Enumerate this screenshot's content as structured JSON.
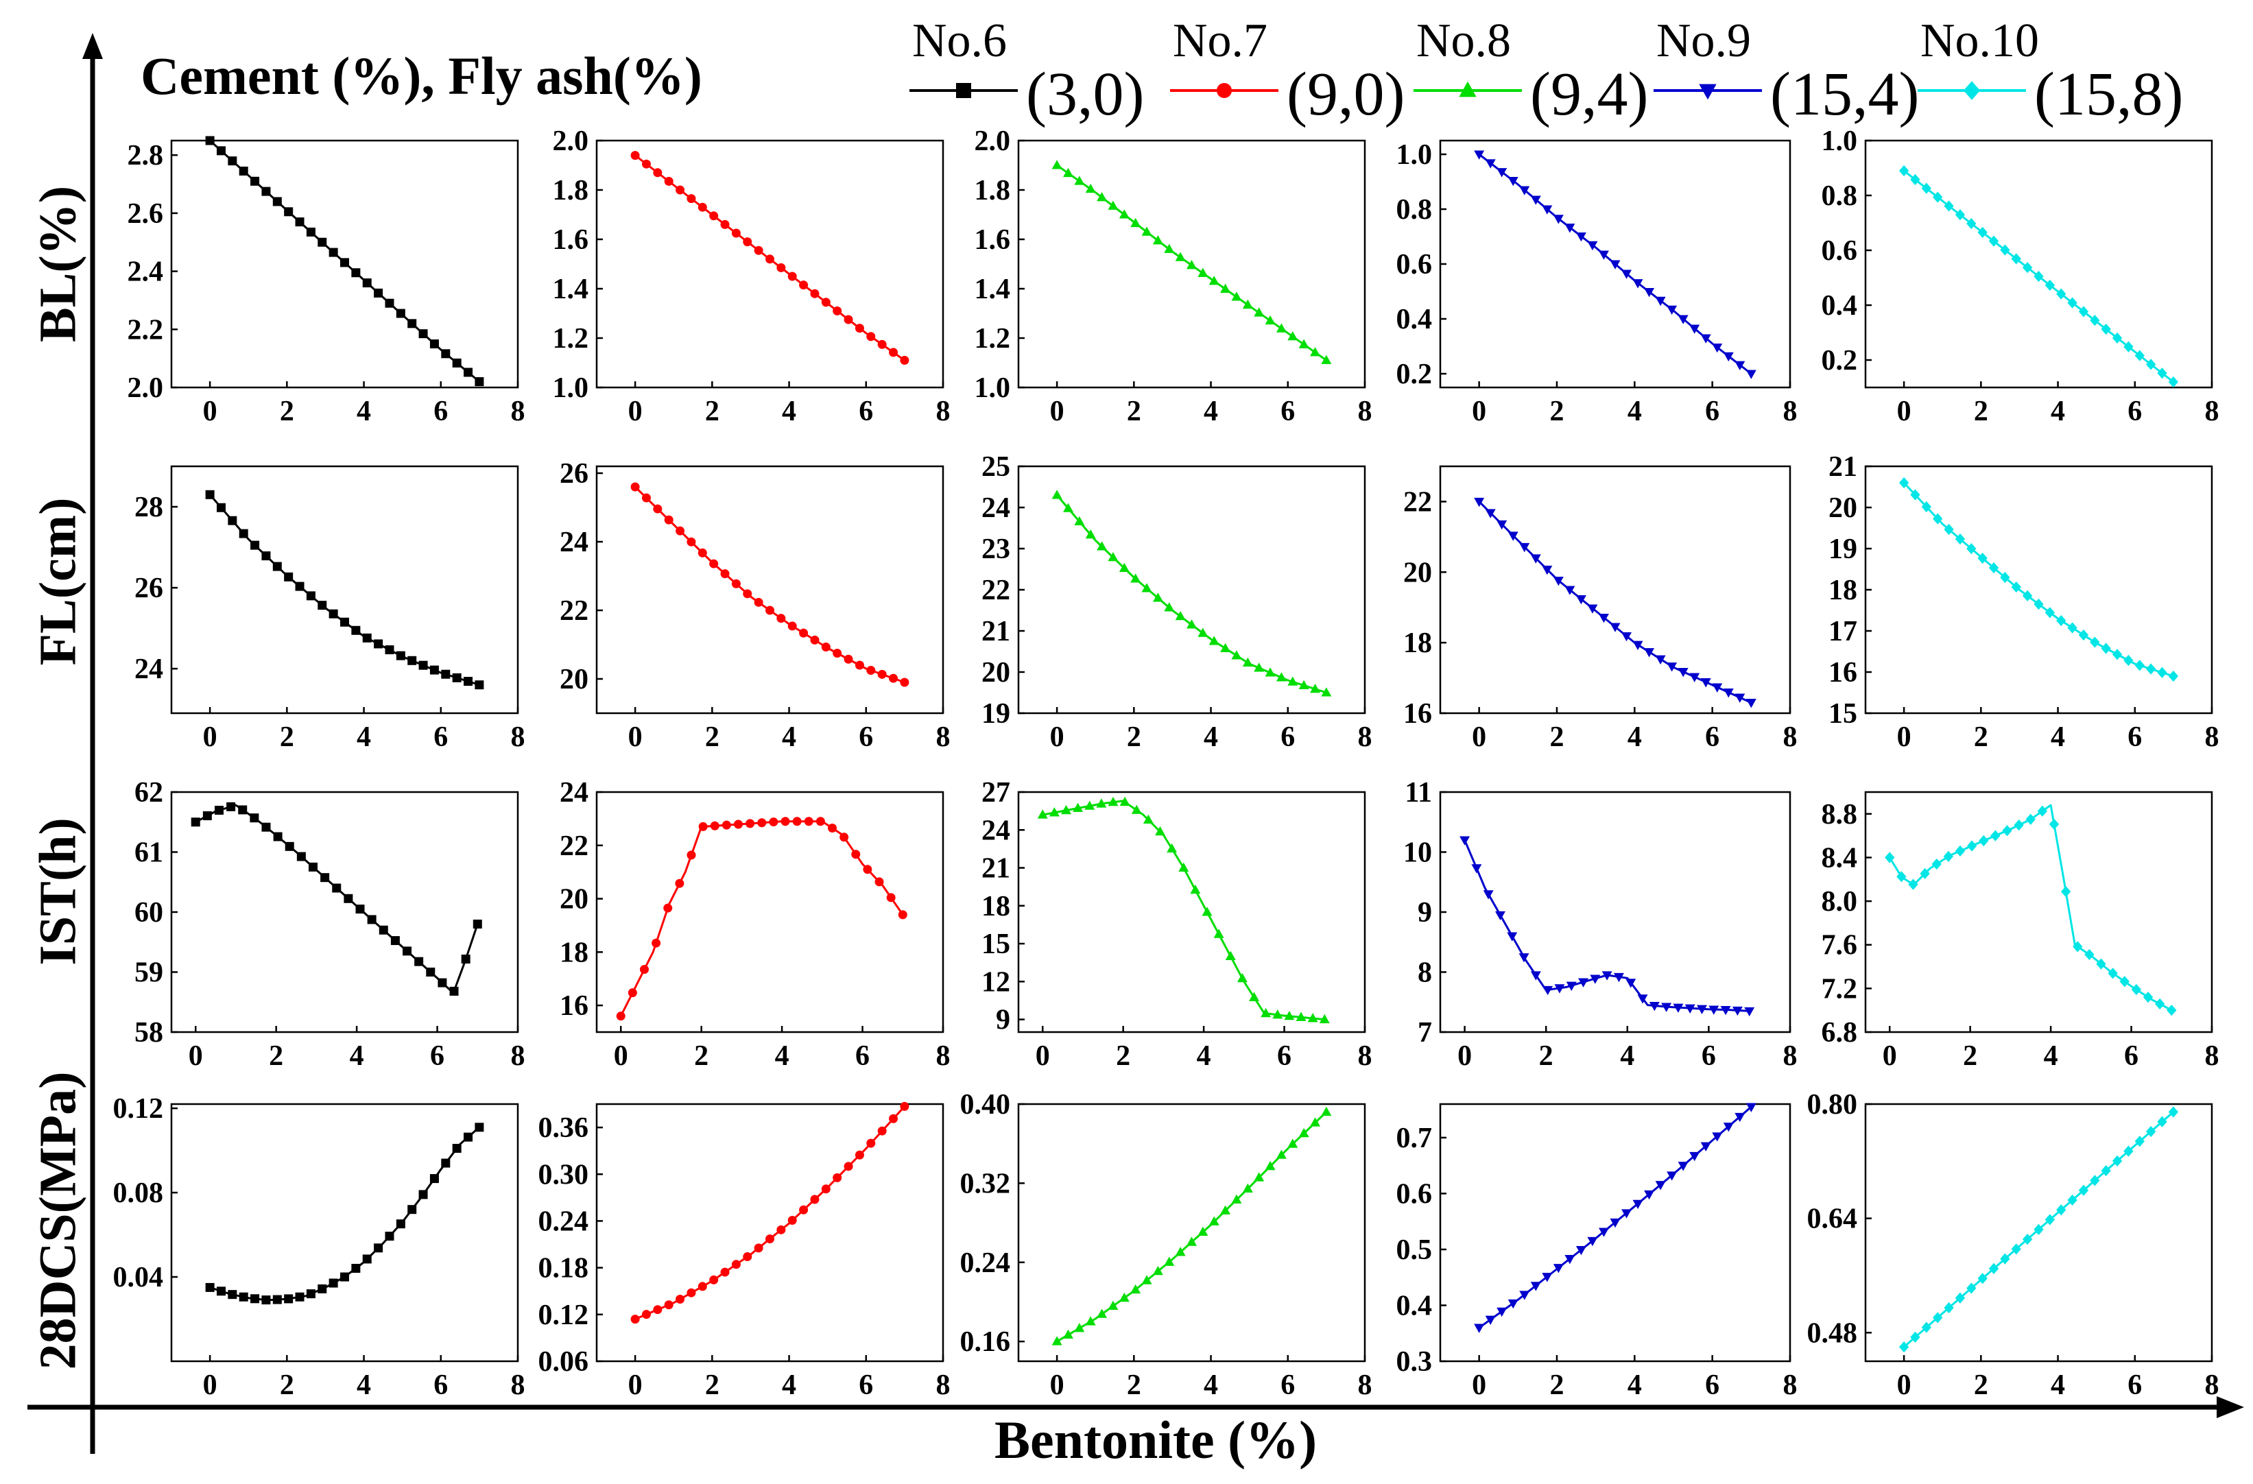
{
  "figure": {
    "title": "Cement (%), Fly ash(%)",
    "xlabel": "Bentonite (%)"
  },
  "row_labels": [
    "BL(%)",
    "FL(cm)",
    "IST(h)",
    "28DCS(MPa)"
  ],
  "legend": [
    {
      "name": "No.6",
      "value": "(3,0)",
      "color": "#000000",
      "marker": "square"
    },
    {
      "name": "No.7",
      "value": "(9,0)",
      "color": "#ff0000",
      "marker": "circle"
    },
    {
      "name": "No.8",
      "value": "(9,4)",
      "color": "#00dd00",
      "marker": "triangle-up"
    },
    {
      "name": "No.9",
      "value": "(15,4)",
      "color": "#0000cc",
      "marker": "triangle-down"
    },
    {
      "name": "No.10",
      "value": "(15,8)",
      "color": "#00e5e5",
      "marker": "diamond"
    }
  ],
  "chart_data": [
    {
      "type": "line",
      "metric": "BL(%)",
      "series": "No.6",
      "xlabel": "Bentonite (%)",
      "ylabel": "BL(%)",
      "xlim": [
        -1,
        8
      ],
      "xticks": [
        0,
        2,
        4,
        6,
        8
      ],
      "ylim": [
        2.0,
        2.85
      ],
      "yticks": [
        "2.0",
        "2.2",
        "2.4",
        "2.6",
        "2.8"
      ],
      "x": [
        0,
        1,
        2,
        3,
        4,
        5,
        6,
        7
      ],
      "y": [
        2.85,
        2.73,
        2.61,
        2.49,
        2.37,
        2.25,
        2.13,
        2.02
      ]
    },
    {
      "type": "line",
      "metric": "BL(%)",
      "series": "No.7",
      "xlabel": "Bentonite (%)",
      "ylabel": "BL(%)",
      "xlim": [
        -1,
        8
      ],
      "xticks": [
        0,
        2,
        4,
        6,
        8
      ],
      "ylim": [
        1.0,
        2.0
      ],
      "yticks": [
        "1.0",
        "1.2",
        "1.4",
        "1.6",
        "1.8",
        "2.0"
      ],
      "x": [
        0,
        1,
        2,
        3,
        4,
        5,
        6,
        7
      ],
      "y": [
        1.94,
        1.82,
        1.7,
        1.58,
        1.46,
        1.34,
        1.22,
        1.11
      ]
    },
    {
      "type": "line",
      "metric": "BL(%)",
      "series": "No.8",
      "xlabel": "Bentonite (%)",
      "ylabel": "BL(%)",
      "xlim": [
        -1,
        8
      ],
      "xticks": [
        0,
        2,
        4,
        6,
        8
      ],
      "ylim": [
        1.0,
        2.0
      ],
      "yticks": [
        "1.0",
        "1.2",
        "1.4",
        "1.6",
        "1.8",
        "2.0"
      ],
      "x": [
        0,
        1,
        2,
        3,
        4,
        5,
        6,
        7
      ],
      "y": [
        1.9,
        1.79,
        1.67,
        1.55,
        1.44,
        1.33,
        1.22,
        1.11
      ]
    },
    {
      "type": "line",
      "metric": "BL(%)",
      "series": "No.9",
      "xlabel": "Bentonite (%)",
      "ylabel": "BL(%)",
      "xlim": [
        -1,
        8
      ],
      "xticks": [
        0,
        2,
        4,
        6,
        8
      ],
      "ylim": [
        0.15,
        1.05
      ],
      "yticks": [
        "0.2",
        "0.4",
        "0.6",
        "0.8",
        "1.0"
      ],
      "x": [
        0,
        1,
        2,
        3,
        4,
        5,
        6,
        7
      ],
      "y": [
        1.0,
        0.89,
        0.77,
        0.66,
        0.54,
        0.43,
        0.31,
        0.2
      ]
    },
    {
      "type": "line",
      "metric": "BL(%)",
      "series": "No.10",
      "xlabel": "Bentonite (%)",
      "ylabel": "BL(%)",
      "xlim": [
        -1,
        8
      ],
      "xticks": [
        0,
        2,
        4,
        6,
        8
      ],
      "ylim": [
        0.1,
        1.0
      ],
      "yticks": [
        "0.2",
        "0.4",
        "0.6",
        "0.8",
        "1.0"
      ],
      "x": [
        0,
        1,
        2,
        3,
        4,
        5,
        6,
        7
      ],
      "y": [
        0.89,
        0.78,
        0.67,
        0.56,
        0.45,
        0.34,
        0.23,
        0.12
      ]
    },
    {
      "type": "line",
      "metric": "FL(cm)",
      "series": "No.6",
      "xlabel": "Bentonite (%)",
      "ylabel": "FL(cm)",
      "xlim": [
        -1,
        8
      ],
      "xticks": [
        0,
        2,
        4,
        6,
        8
      ],
      "ylim": [
        22.9,
        29.0
      ],
      "yticks": [
        "24",
        "26",
        "28"
      ],
      "x": [
        0,
        1,
        2,
        3,
        4,
        5,
        6,
        7
      ],
      "y": [
        28.3,
        27.2,
        26.3,
        25.5,
        24.8,
        24.3,
        23.9,
        23.6
      ]
    },
    {
      "type": "line",
      "metric": "FL(cm)",
      "series": "No.7",
      "xlabel": "Bentonite (%)",
      "ylabel": "FL(cm)",
      "xlim": [
        -1,
        8
      ],
      "xticks": [
        0,
        2,
        4,
        6,
        8
      ],
      "ylim": [
        19.0,
        26.2
      ],
      "yticks": [
        "20",
        "22",
        "24",
        "26"
      ],
      "x": [
        0,
        1,
        2,
        3,
        4,
        5,
        6,
        7
      ],
      "y": [
        25.6,
        24.5,
        23.4,
        22.4,
        21.6,
        20.9,
        20.3,
        19.9
      ]
    },
    {
      "type": "line",
      "metric": "FL(cm)",
      "series": "No.8",
      "xlabel": "Bentonite (%)",
      "ylabel": "FL(cm)",
      "xlim": [
        -1,
        8
      ],
      "xticks": [
        0,
        2,
        4,
        6,
        8
      ],
      "ylim": [
        19.0,
        25.0
      ],
      "yticks": [
        "19",
        "20",
        "21",
        "22",
        "23",
        "24",
        "25"
      ],
      "x": [
        0,
        1,
        2,
        3,
        4,
        5,
        6,
        7
      ],
      "y": [
        24.3,
        23.2,
        22.3,
        21.5,
        20.8,
        20.2,
        19.8,
        19.5
      ]
    },
    {
      "type": "line",
      "metric": "FL(cm)",
      "series": "No.9",
      "xlabel": "Bentonite (%)",
      "ylabel": "FL(cm)",
      "xlim": [
        -1,
        8
      ],
      "xticks": [
        0,
        2,
        4,
        6,
        8
      ],
      "ylim": [
        16.0,
        23.0
      ],
      "yticks": [
        "16",
        "18",
        "20",
        "22"
      ],
      "x": [
        0,
        1,
        2,
        3,
        4,
        5,
        6,
        7
      ],
      "y": [
        22.0,
        20.9,
        19.8,
        18.9,
        18.0,
        17.3,
        16.8,
        16.3
      ]
    },
    {
      "type": "line",
      "metric": "FL(cm)",
      "series": "No.10",
      "xlabel": "Bentonite (%)",
      "ylabel": "FL(cm)",
      "xlim": [
        -1,
        8
      ],
      "xticks": [
        0,
        2,
        4,
        6,
        8
      ],
      "ylim": [
        15.0,
        21.0
      ],
      "yticks": [
        "15",
        "16",
        "17",
        "18",
        "19",
        "20",
        "21"
      ],
      "x": [
        0,
        1,
        2,
        3,
        4,
        5,
        6,
        7
      ],
      "y": [
        20.6,
        19.6,
        18.8,
        18.0,
        17.3,
        16.7,
        16.2,
        15.9
      ]
    },
    {
      "type": "line",
      "metric": "IST(h)",
      "series": "No.6",
      "xlabel": "Bentonite (%)",
      "ylabel": "IST(h)",
      "xlim": [
        -0.6,
        8.0
      ],
      "xticks": [
        0,
        2,
        4,
        6,
        8
      ],
      "ylim": [
        58.0,
        62.0
      ],
      "yticks": [
        "58",
        "59",
        "60",
        "61",
        "62"
      ],
      "x": [
        0,
        0.5,
        1.0,
        1.5,
        2.0,
        2.5,
        3.0,
        3.5,
        4.0,
        4.5,
        5.0,
        5.5,
        6.0,
        6.4,
        6.7,
        7.0
      ],
      "y": [
        61.5,
        61.68,
        61.78,
        61.55,
        61.28,
        61.0,
        60.7,
        60.4,
        60.1,
        59.8,
        59.5,
        59.2,
        58.9,
        58.65,
        59.2,
        59.8
      ]
    },
    {
      "type": "line",
      "metric": "IST(h)",
      "series": "No.7",
      "xlabel": "Bentonite (%)",
      "ylabel": "IST(h)",
      "xlim": [
        -0.6,
        8.0
      ],
      "xticks": [
        0,
        2,
        4,
        6,
        8
      ],
      "ylim": [
        15.0,
        24.0
      ],
      "yticks": [
        "16",
        "18",
        "20",
        "22",
        "24"
      ],
      "x": [
        0,
        0.4,
        0.8,
        1.2,
        1.6,
        2.0,
        2.5,
        3.0,
        3.5,
        4.0,
        4.5,
        5.0,
        5.5,
        6.0,
        6.5,
        7.0
      ],
      "y": [
        15.6,
        16.8,
        18.0,
        19.8,
        21.0,
        22.7,
        22.75,
        22.8,
        22.85,
        22.9,
        22.9,
        22.9,
        22.4,
        21.3,
        20.5,
        19.4
      ]
    },
    {
      "type": "line",
      "metric": "IST(h)",
      "series": "No.8",
      "xlabel": "Bentonite (%)",
      "ylabel": "IST(h)",
      "xlim": [
        -0.6,
        8.0
      ],
      "xticks": [
        0,
        2,
        4,
        6,
        8
      ],
      "ylim": [
        8.0,
        27.0
      ],
      "yticks": [
        "9",
        "12",
        "15",
        "18",
        "21",
        "24",
        "27"
      ],
      "x": [
        0,
        0.5,
        1.0,
        1.5,
        2.0,
        2.5,
        3.0,
        3.5,
        4.0,
        4.5,
        5.0,
        5.5,
        6.0,
        6.5,
        7.0
      ],
      "y": [
        25.2,
        25.5,
        25.8,
        26.1,
        26.3,
        25.2,
        23.6,
        21.0,
        18.0,
        15.0,
        12.0,
        9.5,
        9.3,
        9.15,
        9.0
      ]
    },
    {
      "type": "line",
      "metric": "IST(h)",
      "series": "No.9",
      "xlabel": "Bentonite (%)",
      "ylabel": "IST(h)",
      "xlim": [
        -0.6,
        8.0
      ],
      "xticks": [
        0,
        2,
        4,
        6,
        8
      ],
      "ylim": [
        7.0,
        11.0
      ],
      "yticks": [
        "7",
        "8",
        "9",
        "10",
        "11"
      ],
      "x": [
        0,
        0.5,
        1.0,
        1.5,
        2.0,
        2.5,
        3.0,
        3.5,
        4.0,
        4.5,
        5.0,
        5.5,
        6.0,
        6.5,
        7.0
      ],
      "y": [
        10.2,
        9.4,
        8.8,
        8.2,
        7.7,
        7.75,
        7.85,
        7.95,
        7.9,
        7.45,
        7.42,
        7.4,
        7.38,
        7.37,
        7.35
      ]
    },
    {
      "type": "line",
      "metric": "IST(h)",
      "series": "No.10",
      "xlabel": "Bentonite (%)",
      "ylabel": "IST(h)",
      "xlim": [
        -0.6,
        8.0
      ],
      "xticks": [
        0,
        2,
        4,
        6,
        8
      ],
      "ylim": [
        6.8,
        9.0
      ],
      "yticks": [
        "6.8",
        "7.2",
        "7.6",
        "8.0",
        "8.4",
        "8.8"
      ],
      "x": [
        0,
        0.3,
        0.6,
        1.0,
        1.5,
        2.0,
        2.5,
        3.0,
        3.5,
        4.0,
        4.3,
        4.6,
        5.0,
        5.5,
        6.0,
        6.5,
        7.0
      ],
      "y": [
        8.4,
        8.22,
        8.15,
        8.3,
        8.42,
        8.5,
        8.58,
        8.66,
        8.75,
        8.88,
        8.25,
        7.6,
        7.5,
        7.35,
        7.22,
        7.1,
        7.0
      ]
    },
    {
      "type": "line",
      "metric": "28DCS(MPa)",
      "series": "No.6",
      "xlabel": "Bentonite (%)",
      "ylabel": "28DCS(MPa)",
      "xlim": [
        -1,
        8
      ],
      "xticks": [
        0,
        2,
        4,
        6,
        8
      ],
      "ylim": [
        0.0,
        0.122
      ],
      "yticks": [
        "0.04",
        "0.08",
        "0.12"
      ],
      "x": [
        0,
        0.5,
        1.0,
        1.5,
        2.0,
        2.5,
        3.0,
        3.5,
        4.0,
        4.5,
        5.0,
        5.5,
        6.0,
        6.5,
        7.0
      ],
      "y": [
        0.035,
        0.032,
        0.03,
        0.029,
        0.0295,
        0.031,
        0.035,
        0.04,
        0.047,
        0.056,
        0.066,
        0.078,
        0.091,
        0.103,
        0.111
      ]
    },
    {
      "type": "line",
      "metric": "28DCS(MPa)",
      "series": "No.7",
      "xlabel": "Bentonite (%)",
      "ylabel": "28DCS(MPa)",
      "xlim": [
        -1,
        8
      ],
      "xticks": [
        0,
        2,
        4,
        6,
        8
      ],
      "ylim": [
        0.06,
        0.39
      ],
      "yticks": [
        "0.06",
        "0.12",
        "0.18",
        "0.24",
        "0.30",
        "0.36"
      ],
      "x": [
        0,
        1,
        2,
        3,
        4,
        5,
        6,
        7
      ],
      "y": [
        0.114,
        0.135,
        0.163,
        0.197,
        0.237,
        0.283,
        0.333,
        0.387
      ]
    },
    {
      "type": "line",
      "metric": "28DCS(MPa)",
      "series": "No.8",
      "xlabel": "Bentonite (%)",
      "ylabel": "28DCS(MPa)",
      "xlim": [
        -1,
        8
      ],
      "xticks": [
        0,
        2,
        4,
        6,
        8
      ],
      "ylim": [
        0.14,
        0.4
      ],
      "yticks": [
        "0.16",
        "0.24",
        "0.32",
        "0.40"
      ],
      "x": [
        0,
        1,
        2,
        3,
        4,
        5,
        6,
        7
      ],
      "y": [
        0.16,
        0.183,
        0.211,
        0.243,
        0.278,
        0.316,
        0.355,
        0.392
      ]
    },
    {
      "type": "line",
      "metric": "28DCS(MPa)",
      "series": "No.9",
      "xlabel": "Bentonite (%)",
      "ylabel": "28DCS(MPa)",
      "xlim": [
        -1,
        8
      ],
      "xticks": [
        0,
        2,
        4,
        6,
        8
      ],
      "ylim": [
        0.3,
        0.76
      ],
      "yticks": [
        "0.3",
        "0.4",
        "0.5",
        "0.6",
        "0.7"
      ],
      "x": [
        0,
        1,
        2,
        3,
        4,
        5,
        6,
        7
      ],
      "y": [
        0.36,
        0.41,
        0.465,
        0.52,
        0.577,
        0.635,
        0.695,
        0.755
      ]
    },
    {
      "type": "line",
      "metric": "28DCS(MPa)",
      "series": "No.10",
      "xlabel": "Bentonite (%)",
      "ylabel": "28DCS(MPa)",
      "xlim": [
        -1,
        8
      ],
      "xticks": [
        0,
        2,
        4,
        6,
        8
      ],
      "ylim": [
        0.44,
        0.8
      ],
      "yticks": [
        "0.48",
        "0.64",
        "0.80"
      ],
      "x": [
        0,
        1,
        2,
        3,
        4,
        5,
        6,
        7
      ],
      "y": [
        0.46,
        0.507,
        0.554,
        0.601,
        0.648,
        0.695,
        0.742,
        0.789
      ]
    }
  ]
}
